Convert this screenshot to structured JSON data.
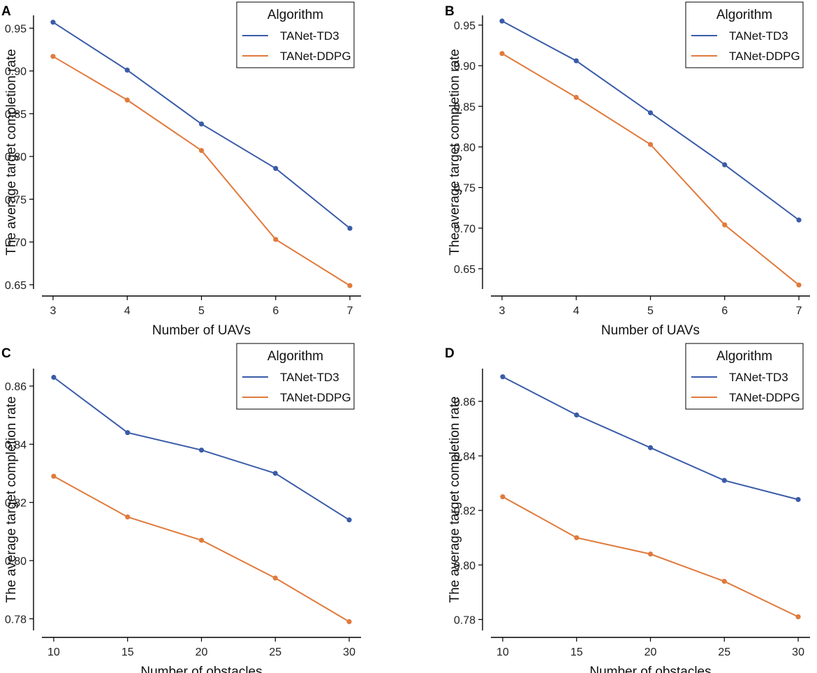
{
  "colors": {
    "td3": "#3A5BA8",
    "ddpg": "#E07A3C"
  },
  "chart_data": [
    {
      "panel": "A",
      "type": "line",
      "xlabel": "Number of UAVs",
      "ylabel": "The average target completion rate",
      "x": [
        3,
        4,
        5,
        6,
        7
      ],
      "xticks": [
        "3",
        "4",
        "5",
        "6",
        "7"
      ],
      "yticks": [
        "0.65",
        "0.70",
        "0.75",
        "0.80",
        "0.85",
        "0.90",
        "0.95"
      ],
      "ytick_values": [
        0.65,
        0.7,
        0.75,
        0.8,
        0.85,
        0.9,
        0.95
      ],
      "ylim": [
        0.645,
        0.965
      ],
      "legend_title": "Algorithm",
      "series": [
        {
          "name": "TANet-TD3",
          "values": [
            0.957,
            0.901,
            0.838,
            0.786,
            0.716
          ]
        },
        {
          "name": "TANet-DDPG",
          "values": [
            0.917,
            0.866,
            0.807,
            0.703,
            0.649
          ]
        }
      ]
    },
    {
      "panel": "B",
      "type": "line",
      "xlabel": "Number of UAVs",
      "ylabel": "The average target completion rate",
      "x": [
        3,
        4,
        5,
        6,
        7
      ],
      "xticks": [
        "3",
        "4",
        "5",
        "6",
        "7"
      ],
      "yticks": [
        "0.65",
        "0.70",
        "0.75",
        "0.80",
        "0.85",
        "0.90",
        "0.95"
      ],
      "ytick_values": [
        0.65,
        0.7,
        0.75,
        0.8,
        0.85,
        0.9,
        0.95
      ],
      "ylim": [
        0.625,
        0.962
      ],
      "legend_title": "Algorithm",
      "series": [
        {
          "name": "TANet-TD3",
          "values": [
            0.955,
            0.906,
            0.842,
            0.778,
            0.71
          ]
        },
        {
          "name": "TANet-DDPG",
          "values": [
            0.915,
            0.861,
            0.803,
            0.704,
            0.63
          ]
        }
      ]
    },
    {
      "panel": "C",
      "type": "line",
      "xlabel": "Number of obstacles",
      "ylabel": "The average target completion rate",
      "x": [
        10,
        15,
        20,
        25,
        30
      ],
      "xticks": [
        "10",
        "15",
        "20",
        "25",
        "30"
      ],
      "yticks": [
        "0.78",
        "0.80",
        "0.82",
        "0.84",
        "0.86"
      ],
      "ytick_values": [
        0.78,
        0.8,
        0.82,
        0.84,
        0.86
      ],
      "ylim": [
        0.776,
        0.866
      ],
      "legend_title": "Algorithm",
      "series": [
        {
          "name": "TANet-TD3",
          "values": [
            0.863,
            0.844,
            0.838,
            0.83,
            0.814
          ]
        },
        {
          "name": "TANet-DDPG",
          "values": [
            0.829,
            0.815,
            0.807,
            0.794,
            0.779
          ]
        }
      ]
    },
    {
      "panel": "D",
      "type": "line",
      "xlabel": "Number of obstacles",
      "ylabel": "The average target completion rate",
      "x": [
        10,
        15,
        20,
        25,
        30
      ],
      "xticks": [
        "10",
        "15",
        "20",
        "25",
        "30"
      ],
      "yticks": [
        "0.78",
        "0.80",
        "0.82",
        "0.84",
        "0.86"
      ],
      "ytick_values": [
        0.78,
        0.8,
        0.82,
        0.84,
        0.86
      ],
      "ylim": [
        0.776,
        0.872
      ],
      "legend_title": "Algorithm",
      "series": [
        {
          "name": "TANet-TD3",
          "values": [
            0.869,
            0.855,
            0.843,
            0.831,
            0.824
          ]
        },
        {
          "name": "TANet-DDPG",
          "values": [
            0.825,
            0.81,
            0.804,
            0.794,
            0.781
          ]
        }
      ]
    }
  ]
}
